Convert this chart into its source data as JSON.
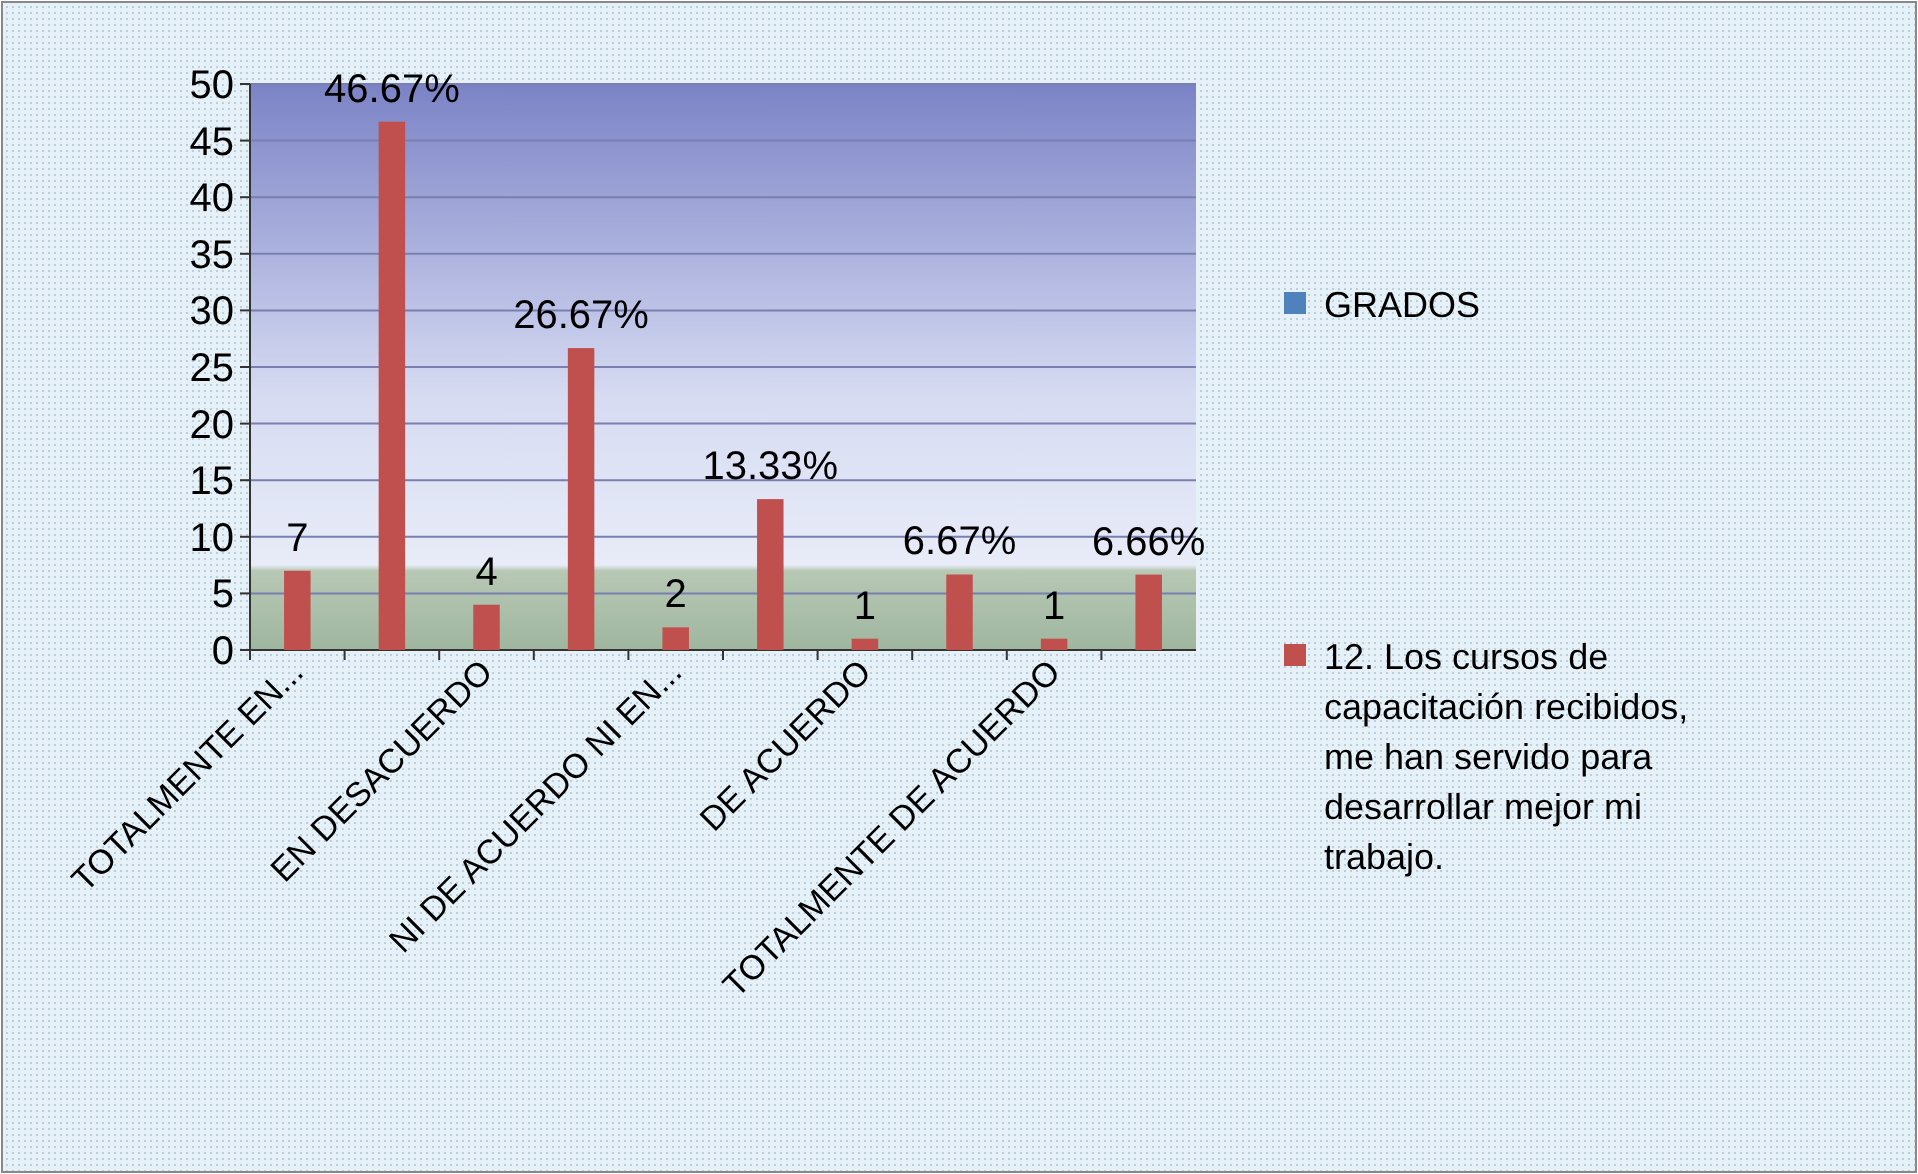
{
  "chart_data": {
    "type": "bar",
    "categories": [
      "TOTALMENTE EN...",
      null,
      "EN DESACUERDO",
      null,
      "NI DE ACUERDO NI EN...",
      null,
      "DE ACUERDO",
      null,
      "TOTALMENTE DE ACUERDO",
      null
    ],
    "series": [
      {
        "name": "GRADOS",
        "color": "#4f81bd",
        "values": [
          null,
          null,
          null,
          null,
          null,
          null,
          null,
          null,
          null,
          null
        ]
      },
      {
        "name": "12. Los cursos de capacitación recibidos, me han servido para desarrollar mejor mi trabajo.",
        "color": "#c0504d",
        "values": [
          7,
          46.67,
          4,
          26.67,
          2,
          13.33,
          1,
          6.67,
          1,
          6.66
        ],
        "value_labels": [
          "7",
          "46.67%",
          "4",
          "26.67%",
          "2",
          "13.33%",
          "1",
          "6.67%",
          "1",
          "6.66%"
        ]
      }
    ],
    "ylim": [
      0,
      50
    ],
    "yticks": [
      0,
      5,
      10,
      15,
      20,
      25,
      30,
      35,
      40,
      45,
      50
    ],
    "grid": "y",
    "legend": "right"
  }
}
